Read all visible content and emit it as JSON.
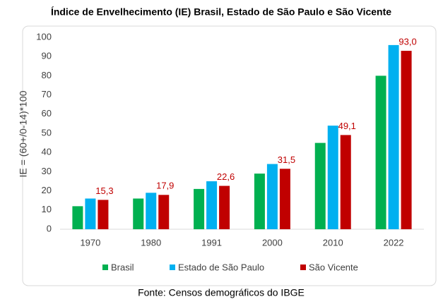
{
  "chart_data": {
    "type": "bar",
    "title": "Índice de Envelhecimento (IE) Brasil, Estado de São Paulo e São Vicente",
    "y_label": "IE = (60+/0-14)*100",
    "source": "Fonte: Censos  demográficos do IBGE",
    "categories": [
      "1970",
      "1980",
      "1991",
      "2000",
      "2010",
      "2022"
    ],
    "series": [
      {
        "name": "Brasil",
        "color": "#00b050",
        "values": [
          12,
          16,
          21,
          29,
          45,
          80
        ]
      },
      {
        "name": "Estado de São Paulo",
        "color": "#00b0f0",
        "values": [
          16,
          19,
          25,
          34,
          54,
          96
        ]
      },
      {
        "name": "São Vicente",
        "color": "#c00000",
        "values": [
          15.3,
          17.9,
          22.6,
          31.5,
          49.1,
          93.0
        ],
        "value_labels": [
          "15,3",
          "17,9",
          "22,6",
          "31,5",
          "49,1",
          "93,0"
        ],
        "label_color": "#c00000"
      }
    ],
    "ylim": [
      0,
      100
    ],
    "yticks": [
      0,
      10,
      20,
      30,
      40,
      50,
      60,
      70,
      80,
      90,
      100
    ],
    "grid": false,
    "legend": "bottom"
  }
}
